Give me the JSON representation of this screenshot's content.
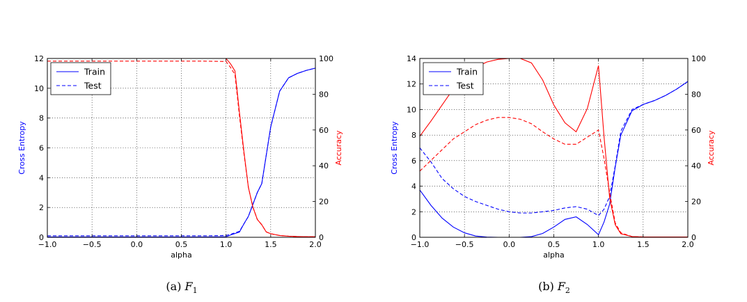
{
  "chart_data": [
    {
      "type": "line",
      "caption": {
        "prefix": "(a)",
        "symbol": "F",
        "subscript": "1"
      },
      "xlabel": "alpha",
      "ylabel_left": "Cross Entropy",
      "ylabel_right": "Accuracy",
      "xlim": [
        -1.0,
        2.0
      ],
      "ylim_left": [
        0,
        12
      ],
      "ylim_right": [
        0,
        100
      ],
      "xticks": [
        "−1.0",
        "−0.5",
        "0.0",
        "0.5",
        "1.0",
        "1.5",
        "2.0"
      ],
      "yticks_left": [
        "0",
        "2",
        "4",
        "6",
        "8",
        "10",
        "12"
      ],
      "yticks_right": [
        "0",
        "20",
        "40",
        "60",
        "80",
        "100"
      ],
      "grid": true,
      "legend": {
        "position": "top-left",
        "entries": [
          "Train",
          "Test"
        ]
      },
      "colors": {
        "loss": "#0000ff",
        "accuracy": "#ff0000"
      },
      "x": [
        -1.0,
        -0.75,
        -0.5,
        -0.25,
        0.0,
        0.25,
        0.5,
        0.75,
        1.0,
        1.05,
        1.1,
        1.15,
        1.2,
        1.25,
        1.3,
        1.35,
        1.4,
        1.45,
        1.5,
        1.6,
        1.7,
        1.8,
        1.9,
        2.0
      ],
      "series": [
        {
          "name": "Train",
          "axis": "left",
          "color": "#0000ff",
          "style": "solid",
          "values": [
            0.02,
            0.02,
            0.02,
            0.02,
            0.02,
            0.02,
            0.02,
            0.02,
            0.03,
            0.15,
            0.25,
            0.35,
            0.9,
            1.4,
            2.2,
            3.0,
            3.6,
            5.5,
            7.4,
            9.8,
            10.7,
            11.0,
            11.2,
            11.35
          ]
        },
        {
          "name": "Test",
          "axis": "left",
          "color": "#0000ff",
          "style": "dashed",
          "values": [
            0.1,
            0.1,
            0.1,
            0.1,
            0.1,
            0.1,
            0.1,
            0.1,
            0.12,
            0.2,
            0.3,
            0.4,
            0.9,
            1.4,
            2.2,
            3.0,
            3.6,
            5.5,
            7.4,
            9.8,
            10.7,
            11.0,
            11.2,
            11.35
          ]
        },
        {
          "name": "Train",
          "axis": "right",
          "color": "#ff0000",
          "style": "solid",
          "values": [
            100,
            100,
            100,
            100,
            100,
            100,
            100,
            100,
            100,
            97,
            93,
            70,
            48,
            28,
            17,
            10,
            7,
            3,
            2,
            1,
            0.6,
            0.4,
            0.3,
            0.3
          ]
        },
        {
          "name": "Test",
          "axis": "right",
          "color": "#ff0000",
          "style": "dashed",
          "values": [
            98.5,
            98.5,
            98.5,
            98.5,
            98.5,
            98.5,
            98.5,
            98.5,
            98.3,
            95,
            91,
            68,
            47,
            28,
            17,
            10,
            7,
            3,
            2,
            1,
            0.6,
            0.4,
            0.3,
            0.3
          ]
        }
      ]
    },
    {
      "type": "line",
      "caption": {
        "prefix": "(b)",
        "symbol": "F",
        "subscript": "2"
      },
      "xlabel": "alpha",
      "ylabel_left": "Cross Entropy",
      "ylabel_right": "Accuracy",
      "xlim": [
        -1.0,
        2.0
      ],
      "ylim_left": [
        0,
        14
      ],
      "ylim_right": [
        0,
        100
      ],
      "xticks": [
        "−1.0",
        "−0.5",
        "0.0",
        "0.5",
        "1.0",
        "1.5",
        "2.0"
      ],
      "yticks_left": [
        "0",
        "2",
        "4",
        "6",
        "8",
        "10",
        "12",
        "14"
      ],
      "yticks_right": [
        "0",
        "20",
        "40",
        "60",
        "80",
        "100"
      ],
      "grid": true,
      "legend": {
        "position": "top-left",
        "entries": [
          "Train",
          "Test"
        ]
      },
      "colors": {
        "loss": "#0000ff",
        "accuracy": "#ff0000"
      },
      "x": [
        -1.0,
        -0.875,
        -0.75,
        -0.625,
        -0.5,
        -0.375,
        -0.25,
        -0.125,
        0.0,
        0.125,
        0.25,
        0.375,
        0.5,
        0.625,
        0.75,
        0.875,
        1.0,
        1.0625,
        1.125,
        1.1875,
        1.25,
        1.375,
        1.5,
        1.625,
        1.75,
        1.875,
        2.0
      ],
      "series": [
        {
          "name": "Train",
          "axis": "left",
          "color": "#0000ff",
          "style": "solid",
          "values": [
            3.7,
            2.5,
            1.5,
            0.8,
            0.35,
            0.1,
            0.02,
            0.0,
            0.0,
            0.0,
            0.05,
            0.3,
            0.8,
            1.4,
            1.6,
            1.0,
            0.2,
            1.2,
            2.6,
            5.5,
            8.0,
            9.9,
            10.4,
            10.7,
            11.1,
            11.6,
            12.2
          ]
        },
        {
          "name": "Test",
          "axis": "left",
          "color": "#0000ff",
          "style": "dashed",
          "values": [
            7.0,
            5.9,
            4.6,
            3.8,
            3.2,
            2.8,
            2.5,
            2.2,
            2.0,
            1.9,
            1.9,
            2.0,
            2.1,
            2.3,
            2.4,
            2.2,
            1.7,
            2.2,
            3.2,
            5.6,
            8.3,
            10.0,
            10.4,
            10.7,
            11.1,
            11.6,
            12.2
          ]
        },
        {
          "name": "Train",
          "axis": "right",
          "color": "#ff0000",
          "style": "solid",
          "values": [
            56.5,
            65,
            74,
            83,
            89,
            95,
            98,
            99.5,
            100,
            100,
            97.5,
            88,
            74,
            64,
            59,
            72,
            96,
            56,
            22,
            7,
            2,
            0.4,
            0.2,
            0.2,
            0.2,
            0.2,
            0.2
          ]
        },
        {
          "name": "Test",
          "axis": "right",
          "color": "#ff0000",
          "style": "dashed",
          "values": [
            37,
            43,
            49,
            55,
            59,
            63,
            65.5,
            67,
            67,
            66,
            63.5,
            59,
            55,
            52,
            52,
            56,
            60,
            44,
            25,
            8,
            2.5,
            0.4,
            0.2,
            0.2,
            0.2,
            0.2,
            0.2
          ]
        }
      ]
    }
  ]
}
